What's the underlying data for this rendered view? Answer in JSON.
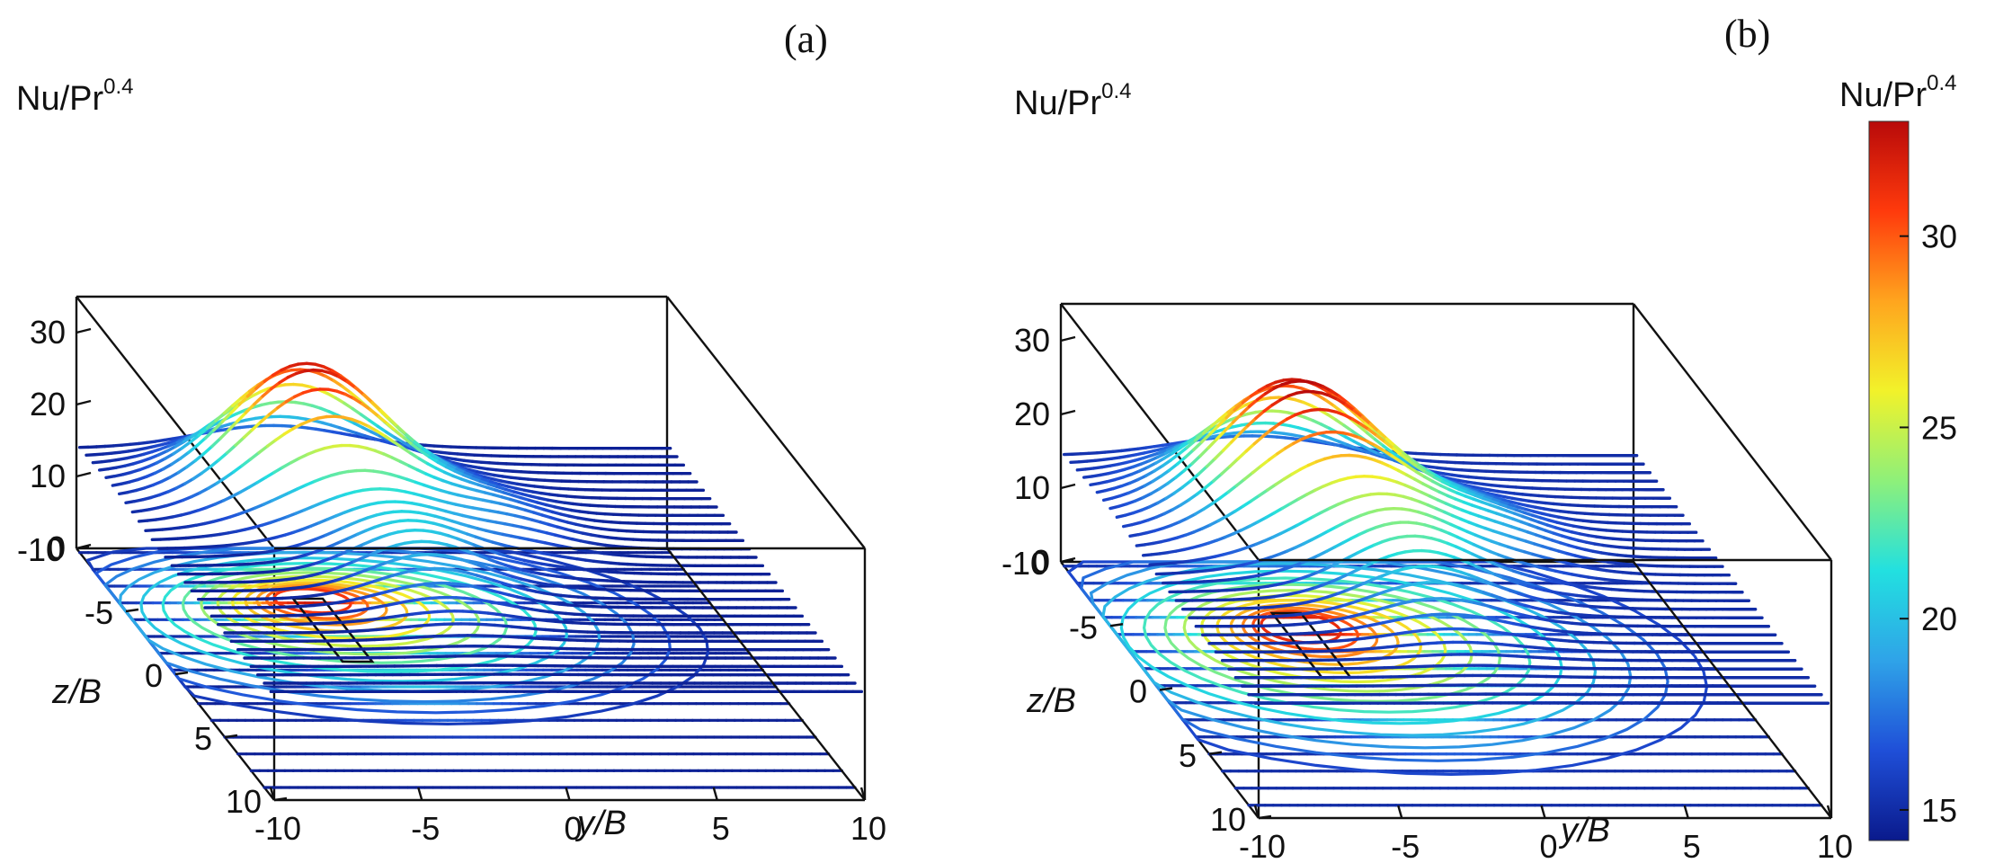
{
  "colormap": {
    "stops": [
      "#0a1a8c",
      "#1f4fd8",
      "#2fa3e8",
      "#22e0e0",
      "#8ef07a",
      "#f2f22a",
      "#ffa51e",
      "#ff3a0c",
      "#b80a0a"
    ]
  },
  "chart_data": [
    {
      "type": "surface-contour",
      "panel_label": "(a)",
      "zlabel_base": "Nu/Pr",
      "zlabel_exp": "0.4",
      "xlabel": "y/B",
      "ylabel": "z/B",
      "x_ticks": [
        "-10",
        "-5",
        "0",
        "5",
        "10"
      ],
      "y_ticks": [
        "-10",
        "-5",
        "0",
        "5",
        "10"
      ],
      "z_ticks": [
        "0",
        "10",
        "20",
        "30"
      ],
      "xlim": [
        -10,
        10
      ],
      "ylim": [
        -10,
        10
      ],
      "zlim": [
        0,
        35
      ],
      "surface": {
        "baseline": 14.5,
        "peaks": [
          {
            "y": -3.5,
            "z": -6.0,
            "height": 17.5,
            "sy": 3.6,
            "sz": 2.8
          },
          {
            "y": -2.0,
            "z": 0.0,
            "height": 6.0,
            "sy": 2.8,
            "sz": 4.0
          },
          {
            "y": 2.0,
            "z": -3.0,
            "height": 3.0,
            "sy": 2.5,
            "sz": 3.0
          }
        ]
      },
      "obstacle": {
        "y_min": -4.0,
        "y_max": -3.0,
        "z_min": -6.0,
        "z_max": -1.0
      }
    },
    {
      "type": "surface-contour",
      "panel_label": "(b)",
      "zlabel_base": "Nu/Pr",
      "zlabel_exp": "0.4",
      "xlabel": "y/B",
      "ylabel": "z/B",
      "x_ticks": [
        "-10",
        "-5",
        "0",
        "5",
        "10"
      ],
      "y_ticks": [
        "-10",
        "-5",
        "0",
        "5",
        "10"
      ],
      "z_ticks": [
        "0",
        "10",
        "20",
        "30"
      ],
      "xlim": [
        -10,
        10
      ],
      "ylim": [
        -10,
        10
      ],
      "zlim": [
        0,
        35
      ],
      "surface": {
        "baseline": 15.0,
        "peaks": [
          {
            "y": -3.5,
            "z": -5.0,
            "height": 17.5,
            "sy": 3.8,
            "sz": 3.4
          },
          {
            "y": -1.5,
            "z": 0.5,
            "height": 7.0,
            "sy": 3.0,
            "sz": 4.0
          },
          {
            "y": 2.5,
            "z": -2.5,
            "height": 3.5,
            "sy": 2.8,
            "sz": 3.2
          }
        ]
      },
      "obstacle": {
        "y_min": -4.0,
        "y_max": -3.0,
        "z_min": -6.0,
        "z_max": -1.0
      }
    }
  ],
  "colorbar": {
    "label_base": "Nu/Pr",
    "label_exp": "0.4",
    "range": [
      14.2,
      33.0
    ],
    "ticks": [
      {
        "value": 15,
        "label": "15"
      },
      {
        "value": 20,
        "label": "20"
      },
      {
        "value": 25,
        "label": "25"
      },
      {
        "value": 30,
        "label": "30"
      }
    ]
  }
}
